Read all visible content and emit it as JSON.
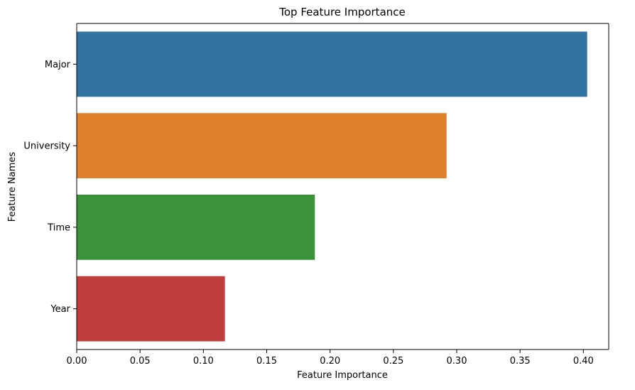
{
  "chart_data": {
    "type": "bar",
    "orientation": "horizontal",
    "title": "Top Feature Importance",
    "xlabel": "Feature Importance",
    "ylabel": "Feature Names",
    "categories": [
      "Major",
      "University",
      "Time",
      "Year"
    ],
    "values": [
      0.403,
      0.292,
      0.188,
      0.117
    ],
    "xlim": [
      0.0,
      0.42
    ],
    "xticks": [
      0.0,
      0.05,
      0.1,
      0.15,
      0.2,
      0.25,
      0.3,
      0.35,
      0.4
    ],
    "xtick_labels": [
      "0.00",
      "0.05",
      "0.10",
      "0.15",
      "0.20",
      "0.25",
      "0.30",
      "0.35",
      "0.40"
    ],
    "colors": [
      "#3274a1",
      "#e1812c",
      "#3a923a",
      "#c03d3e"
    ],
    "grid": false,
    "legend": "none"
  }
}
